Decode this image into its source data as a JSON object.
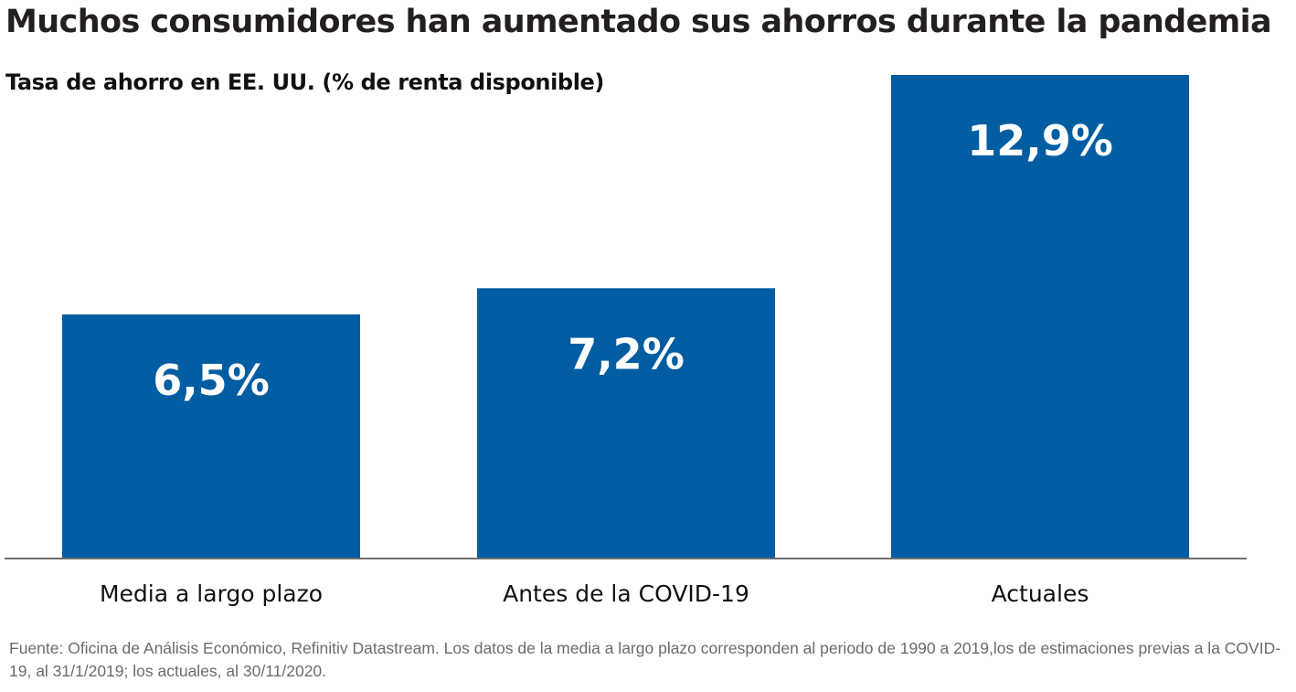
{
  "chart_data": {
    "type": "bar",
    "title": "Muchos consumidores han aumentado sus ahorros durante la pandemia",
    "subtitle": "Tasa de ahorro en EE. UU. (% de renta disponible)",
    "categories": [
      "Media a largo plazo",
      "Antes de la COVID-19",
      "Actuales"
    ],
    "values": [
      6.5,
      7.2,
      12.9
    ],
    "value_labels": [
      "6,5%",
      "7,2%",
      "12,9%"
    ],
    "xlabel": "",
    "ylabel": "",
    "ylim": [
      0,
      12.9
    ],
    "grid": false,
    "legend": "none",
    "bar_color": "#005da2",
    "axis_color": "#6d6e71",
    "footnote": "Fuente: Oficina de Análisis Económico, Refinitiv Datastream. Los datos de la media a largo plazo corresponden al periodo de 1990 a 2019,los de estimaciones previas a la COVID-19, al 31/1/2019; los actuales, al 30/11/2020."
  }
}
